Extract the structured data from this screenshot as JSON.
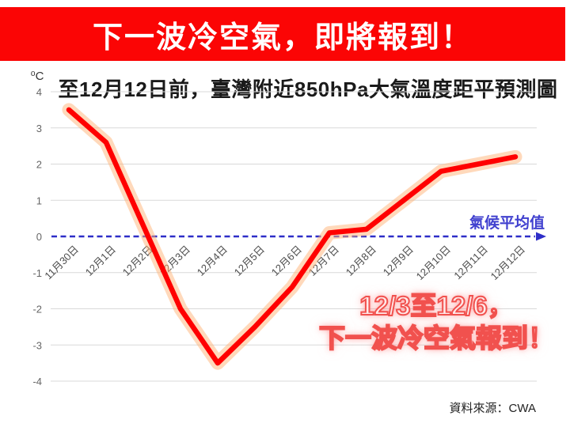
{
  "banner": {
    "text": "下一波冷空氣，即將報到！",
    "bg_color": "#fb0505",
    "text_color": "#ffffff"
  },
  "title": "至12月12日前，臺灣附近850hPa大氣溫度距平預測圖",
  "annotation": {
    "line1": "12/3至12/6，",
    "line2": "下一波冷空氣報到！",
    "stroke_color": "#f1514e"
  },
  "source": "資料來源：CWA",
  "chart_data": {
    "type": "line",
    "title": "至12月12日前，臺灣附近850hPa大氣溫度距平預測圖",
    "ylabel": "⁰C",
    "categories": [
      "11月30日",
      "12月1日",
      "12月2日",
      "12月3日",
      "12月4日",
      "12月5日",
      "12月6日",
      "12月7日",
      "12月8日",
      "12月9日",
      "12月10日",
      "12月11日",
      "12月12日"
    ],
    "series": [
      {
        "color": "#ff0000",
        "glow_color": "#ffb377",
        "values": [
          3.5,
          2.6,
          0.3,
          -2.0,
          -3.5,
          -2.5,
          -1.4,
          0.1,
          0.2,
          1.0,
          1.8,
          2.0,
          2.2
        ]
      }
    ],
    "baseline": {
      "value": 0,
      "label": "氣候平均值",
      "color": "#2e2ec8",
      "label_color": "#4141cf",
      "style": "dashed-arrow"
    },
    "ylim": [
      -4,
      4
    ],
    "yticks": [
      4,
      3,
      2,
      1,
      0,
      -1,
      -2,
      -3,
      -4
    ],
    "grid": true,
    "gridline_color": "#d9d9d9",
    "tick_color": "#666666",
    "xtick_color": "#4d4d4d",
    "legend_position": "none"
  }
}
